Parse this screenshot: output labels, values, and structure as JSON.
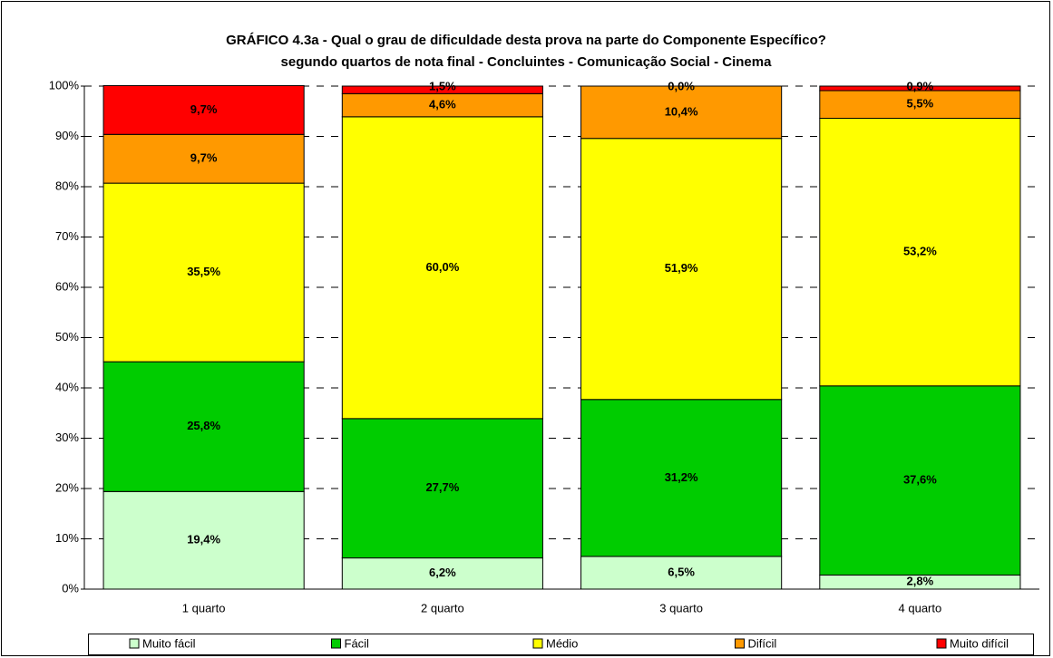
{
  "chart_data": {
    "type": "stacked_bar",
    "title": "GRÁFICO 4.3a - Qual o grau de dificuldade desta prova na parte do Componente Específico?",
    "subtitle": "segundo quartos de nota final  - Concluintes - Comunicação Social - Cinema",
    "categories": [
      "1 quarto",
      "2 quarto",
      "3 quarto",
      "4 quarto"
    ],
    "series": [
      {
        "name": "Muito fácil",
        "color": "#ccffcc",
        "values": [
          19.4,
          6.2,
          6.5,
          2.8
        ],
        "value_labels": [
          "19,4%",
          "6,2%",
          "6,5%",
          "2,8%"
        ]
      },
      {
        "name": "Fácil",
        "color": "#00cc00",
        "values": [
          25.8,
          27.7,
          31.2,
          37.6
        ],
        "value_labels": [
          "25,8%",
          "27,7%",
          "31,2%",
          "37,6%"
        ]
      },
      {
        "name": "Médio",
        "color": "#ffff00",
        "values": [
          35.5,
          60.0,
          51.9,
          53.2
        ],
        "value_labels": [
          "35,5%",
          "60,0%",
          "51,9%",
          "53,2%"
        ]
      },
      {
        "name": "Difícil",
        "color": "#ff9900",
        "values": [
          9.7,
          4.6,
          10.4,
          5.5
        ],
        "value_labels": [
          "9,7%",
          "4,6%",
          "10,4%",
          "5,5%"
        ]
      },
      {
        "name": "Muito difícil",
        "color": "#ff0000",
        "values": [
          9.7,
          1.5,
          0.0,
          0.9
        ],
        "value_labels": [
          "9,7%",
          "1,5%",
          "0,0%",
          "0,9%"
        ]
      }
    ],
    "ylim": [
      0,
      100
    ],
    "yticks": [
      {
        "value": 0,
        "label": "0%"
      },
      {
        "value": 10,
        "label": "10%"
      },
      {
        "value": 20,
        "label": "20%"
      },
      {
        "value": 30,
        "label": "30%"
      },
      {
        "value": 40,
        "label": "40%"
      },
      {
        "value": 50,
        "label": "50%"
      },
      {
        "value": 60,
        "label": "60%"
      },
      {
        "value": 70,
        "label": "70%"
      },
      {
        "value": 80,
        "label": "80%"
      },
      {
        "value": 90,
        "label": "90%"
      },
      {
        "value": 100,
        "label": "100%"
      }
    ],
    "grid": true,
    "legend": "bottom"
  }
}
